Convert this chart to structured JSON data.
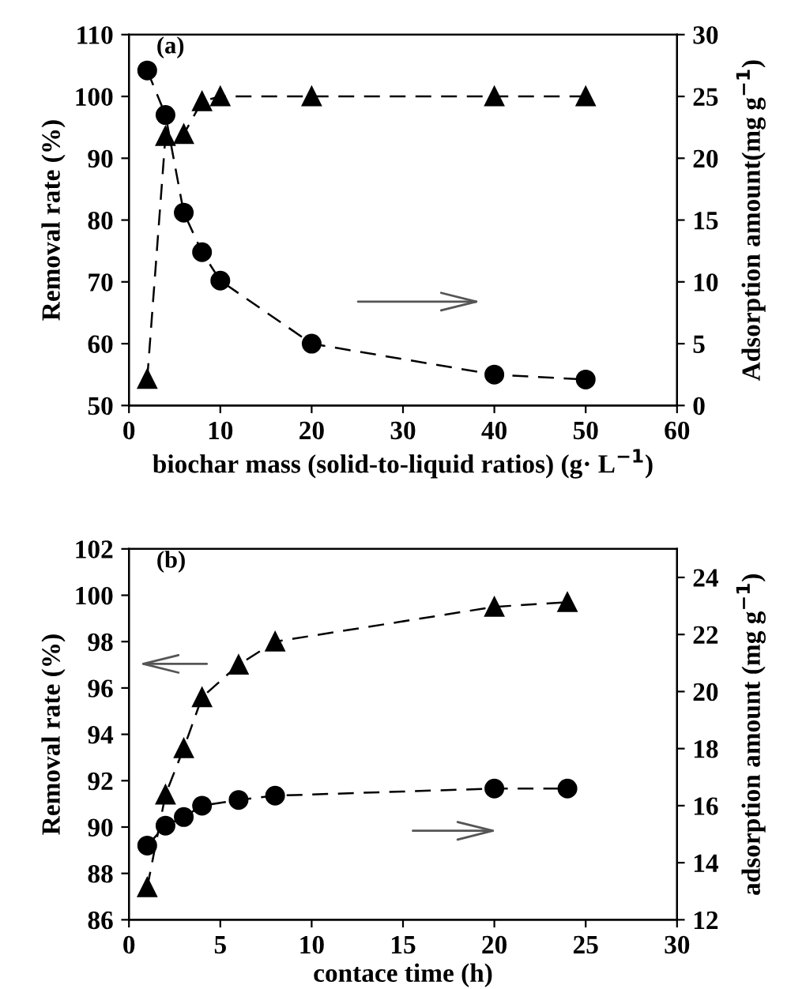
{
  "chart_data": [
    {
      "type": "line",
      "xlabel": "biochar mass (solid-to-liquid ratios) (g· L$^{−1}$)",
      "ylabel": "Removal rate (%)",
      "y2label": "Adsorption amount(mg g$^{−1}$)",
      "annotations": [
        "(a)"
      ],
      "x": [
        2,
        4,
        6,
        8,
        10,
        20,
        40,
        50
      ],
      "line_style": "dashed",
      "grid": false,
      "legend": false,
      "series": [
        {
          "color": "#000000",
          "marker": "triangle",
          "values": [
            54.3,
            93.6,
            93.9,
            99.2,
            100,
            100,
            100,
            100
          ]
        },
        {
          "color": "#000000",
          "marker": "circle",
          "axis": "y2",
          "values": [
            27.1,
            23.5,
            15.6,
            12.4,
            10.1,
            5.0,
            2.5,
            2.1
          ]
        }
      ],
      "xlim": [
        0,
        60
      ],
      "xticks": [
        0,
        10,
        20,
        30,
        40,
        50,
        60
      ],
      "ylim": [
        50,
        110
      ],
      "yticks": [
        50,
        60,
        70,
        80,
        90,
        100,
        110
      ],
      "y2lim": [
        0,
        30
      ],
      "y2ticks": [
        0,
        5,
        10,
        15,
        20,
        25,
        30
      ]
    },
    {
      "type": "line",
      "xlabel": "contace time (h)",
      "ylabel": "Removal rate (%)",
      "y2label": "adsorption amount (mg g$^{−1}$)",
      "annotations": [
        "(b)"
      ],
      "x": [
        1,
        2,
        3,
        4,
        6,
        8,
        20,
        24
      ],
      "line_style": "dashed",
      "grid": false,
      "legend": false,
      "series": [
        {
          "color": "#000000",
          "marker": "triangle",
          "values": [
            87.4,
            91.4,
            93.4,
            95.6,
            97.0,
            98.0,
            99.5,
            99.7
          ]
        },
        {
          "color": "#000000",
          "marker": "circle",
          "axis": "y2",
          "values": [
            14.6,
            15.3,
            15.6,
            16.0,
            16.2,
            16.35,
            16.6,
            16.6
          ]
        }
      ],
      "xlim": [
        0,
        30
      ],
      "xticks": [
        0,
        5,
        10,
        15,
        20,
        25,
        30
      ],
      "ylim": [
        86,
        102
      ],
      "yticks": [
        86,
        88,
        90,
        92,
        94,
        96,
        98,
        100,
        102
      ],
      "y2lim": [
        12,
        25
      ],
      "y2ticks": [
        12,
        14,
        16,
        18,
        20,
        22,
        24
      ]
    }
  ]
}
